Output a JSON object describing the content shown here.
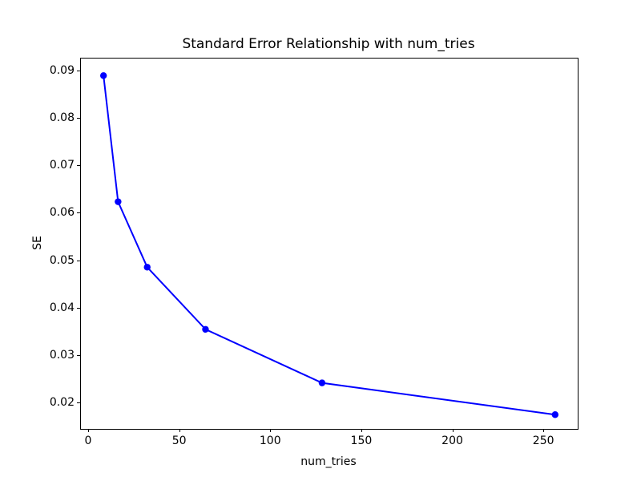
{
  "chart_data": {
    "type": "line",
    "title": "Standard Error Relationship with num_tries",
    "xlabel": "num_tries",
    "ylabel": "SE",
    "x": [
      8,
      16,
      32,
      64,
      128,
      256
    ],
    "y": [
      0.0891,
      0.0625,
      0.0487,
      0.0356,
      0.0243,
      0.0176
    ],
    "xlim": [
      -4.4,
      268.4
    ],
    "ylim": [
      0.0146,
      0.0927
    ],
    "xticks": [
      0,
      50,
      100,
      150,
      200,
      250
    ],
    "xtick_labels": [
      "0",
      "50",
      "100",
      "150",
      "200",
      "250"
    ],
    "yticks": [
      0.02,
      0.03,
      0.04,
      0.05,
      0.06,
      0.07,
      0.08,
      0.09
    ],
    "ytick_labels": [
      "0.02",
      "0.03",
      "0.04",
      "0.05",
      "0.06",
      "0.07",
      "0.08",
      "0.09"
    ],
    "line_color": "#0000ff",
    "marker": "circle",
    "marker_radius": 4.2,
    "line_width": 2,
    "grid": false,
    "legend": null,
    "background_color": "#ffffff",
    "text_color": "#000000"
  }
}
